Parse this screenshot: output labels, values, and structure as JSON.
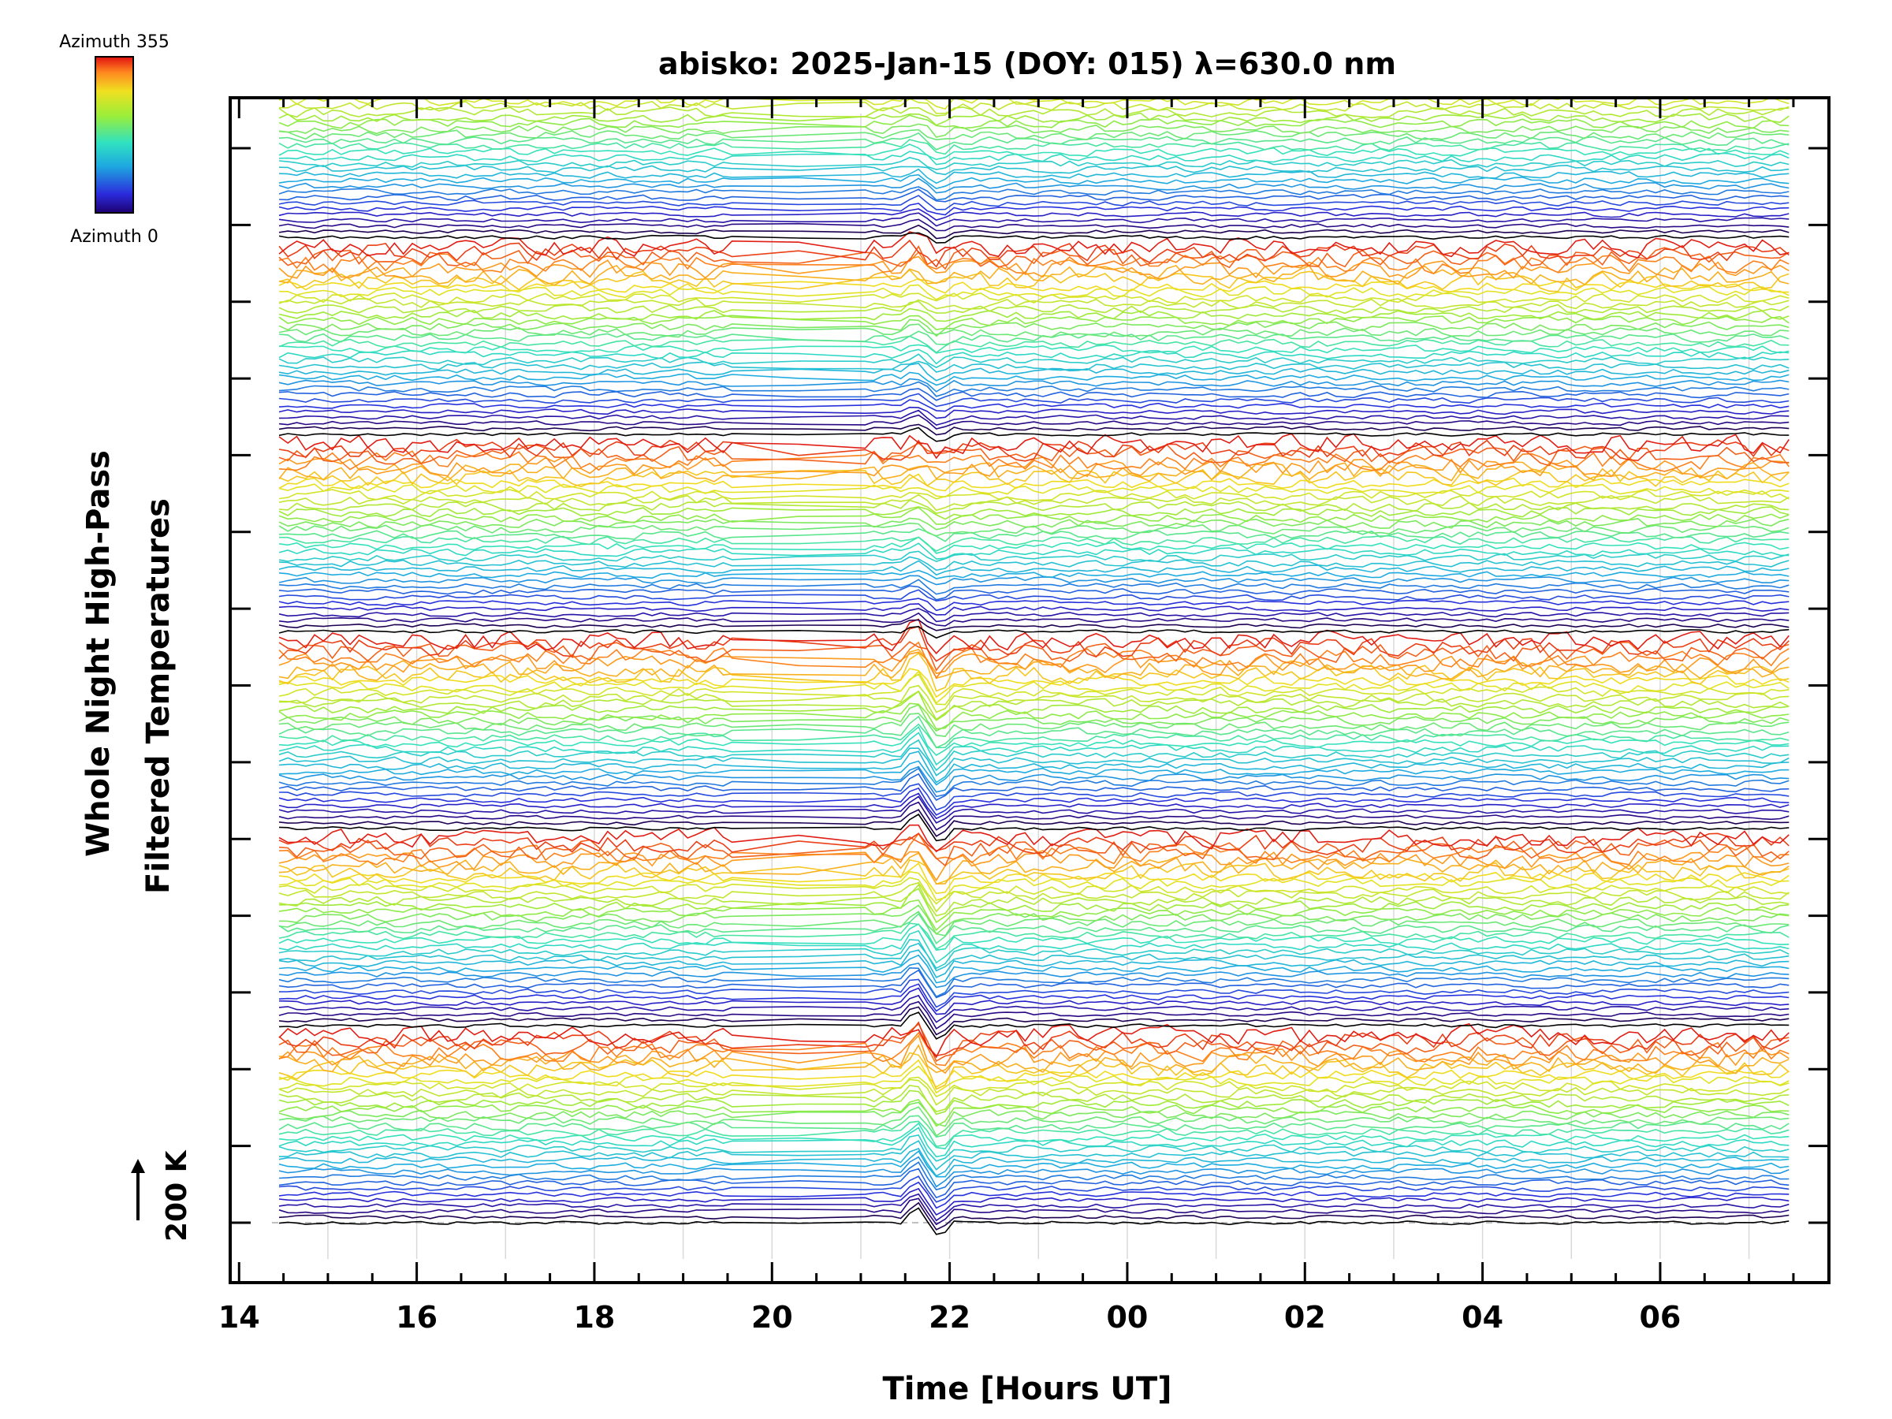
{
  "chart_data": {
    "type": "line",
    "title": "abisko: 2025-Jan-15 (DOY: 015) λ=630.0 nm",
    "xlabel": "Time [Hours UT]",
    "ylabel_line1": "Whole Night High-Pass",
    "ylabel_line2": "Filtered Temperatures",
    "x_ticks": [
      "14",
      "16",
      "18",
      "20",
      "22",
      "00",
      "02",
      "04",
      "06"
    ],
    "x_tick_hours": [
      14,
      16,
      18,
      20,
      22,
      24,
      26,
      28,
      30
    ],
    "xlim": [
      13.9,
      31.9
    ],
    "data_x_range": [
      14.45,
      31.5
    ],
    "data_gap_hours": [
      19.6,
      21.0
    ],
    "y_scale_label": "200 K",
    "colorbar": {
      "top_label": "Azimuth 355",
      "bottom_label": "Azimuth 0"
    },
    "series_layout": {
      "groups": 6,
      "traces_per_group": 34,
      "azimuth_range_deg": [
        0,
        355
      ],
      "notable_disturbance_hour": 21.75
    },
    "colors": {
      "background": "#ffffff",
      "axis": "#000000",
      "gridline": "#d9d9d9"
    }
  }
}
